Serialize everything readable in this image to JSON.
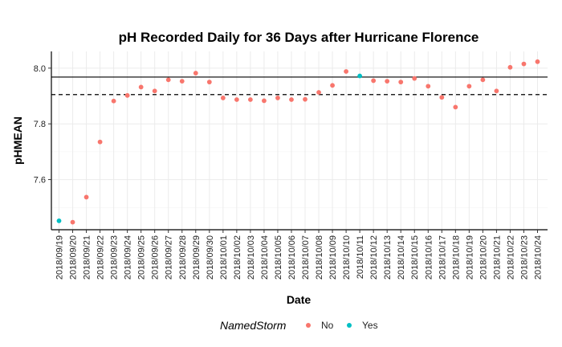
{
  "chart_data": {
    "type": "scatter",
    "title": "pH Recorded Daily for 36 Days after Hurricane Florence",
    "xlabel": "Date",
    "ylabel": "pHMEAN",
    "ylim": [
      7.42,
      8.06
    ],
    "yticks": [
      7.6,
      7.8,
      8.0
    ],
    "grid": true,
    "legend": {
      "title": "NamedStorm",
      "position": "bottom",
      "entries": [
        {
          "label": "No",
          "color": "#F8766D"
        },
        {
          "label": "Yes",
          "color": "#00BFC4"
        }
      ]
    },
    "hlines": [
      {
        "y": 7.968,
        "style": "solid"
      },
      {
        "y": 7.905,
        "style": "dashed"
      }
    ],
    "categories": [
      "2018/09/19",
      "2018/09/20",
      "2018/09/21",
      "2018/09/22",
      "2018/09/23",
      "2018/09/24",
      "2018/09/25",
      "2018/09/26",
      "2018/09/27",
      "2018/09/28",
      "2018/09/29",
      "2018/09/30",
      "2018/10/01",
      "2018/10/02",
      "2018/10/03",
      "2018/10/04",
      "2018/10/05",
      "2018/10/06",
      "2018/10/07",
      "2018/10/08",
      "2018/10/09",
      "2018/10/10",
      "2018/10/11",
      "2018/10/12",
      "2018/10/13",
      "2018/10/14",
      "2018/10/15",
      "2018/10/16",
      "2018/10/17",
      "2018/10/18",
      "2018/10/19",
      "2018/10/20",
      "2018/10/21",
      "2018/10/22",
      "2018/10/23",
      "2018/10/24"
    ],
    "values": [
      7.452,
      7.447,
      7.537,
      7.735,
      7.882,
      7.902,
      7.932,
      7.918,
      7.958,
      7.953,
      7.982,
      7.95,
      7.893,
      7.887,
      7.887,
      7.883,
      7.893,
      7.887,
      7.888,
      7.913,
      7.938,
      7.988,
      7.972,
      7.955,
      7.953,
      7.95,
      7.963,
      7.935,
      7.895,
      7.86,
      7.935,
      7.958,
      7.918,
      8.003,
      8.015,
      8.023
    ],
    "named_storm": [
      "Yes",
      "No",
      "No",
      "No",
      "No",
      "No",
      "No",
      "No",
      "No",
      "No",
      "No",
      "No",
      "No",
      "No",
      "No",
      "No",
      "No",
      "No",
      "No",
      "No",
      "No",
      "No",
      "Yes",
      "No",
      "No",
      "No",
      "No",
      "No",
      "No",
      "No",
      "No",
      "No",
      "No",
      "No",
      "No",
      "No"
    ]
  }
}
